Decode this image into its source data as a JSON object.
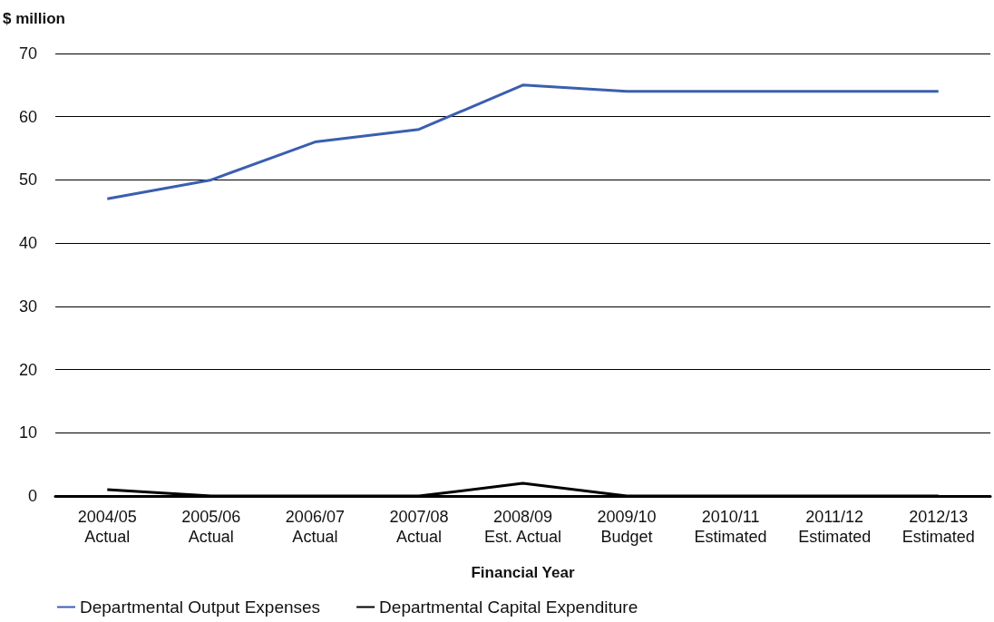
{
  "chart_data": {
    "type": "line",
    "ylabel": "$ million",
    "xlabel": "Financial Year",
    "categories": [
      "2004/05\nActual",
      "2005/06\nActual",
      "2006/07\nActual",
      "2007/08\nActual",
      "2008/09\nEst. Actual",
      "2009/10\nBudget",
      "2010/11\nEstimated",
      "2011/12\nEstimated",
      "2012/13\nEstimated"
    ],
    "series": [
      {
        "name": "Departmental Output Expenses",
        "color": "#3a5fb0",
        "values": [
          47,
          50,
          56,
          58,
          65,
          64,
          64,
          64,
          64
        ]
      },
      {
        "name": "Departmental Capital Expenditure",
        "color": "#000000",
        "values": [
          1,
          0,
          0,
          0,
          2,
          0,
          0,
          0,
          0
        ]
      }
    ],
    "ylim": [
      0,
      70
    ],
    "yticks": [
      0,
      10,
      20,
      30,
      40,
      50,
      60,
      70
    ],
    "grid": "y",
    "legend": "bottom left",
    "marker": "none",
    "line_style": "solid"
  }
}
